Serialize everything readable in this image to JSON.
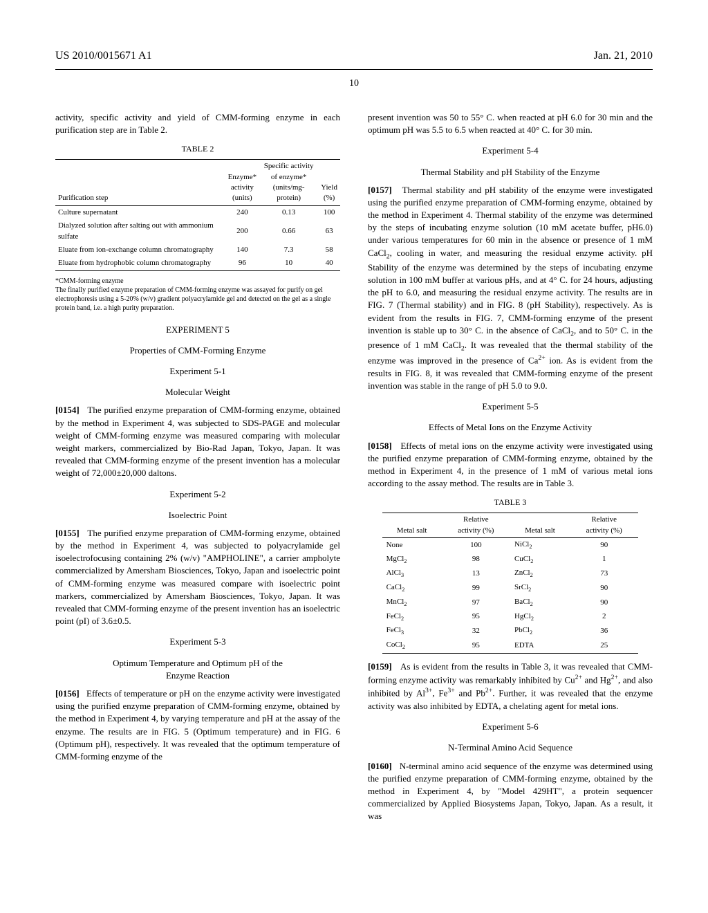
{
  "header": {
    "left": "US 2010/0015671 A1",
    "right": "Jan. 21, 2010"
  },
  "page_number": "10",
  "col_left": {
    "intro": "activity, specific activity and yield of CMM-forming enzyme in each purification step are in Table 2.",
    "table2": {
      "label": "TABLE 2",
      "headers": [
        "Purification step",
        "Enzyme* activity (units)",
        "Specific activity of enzyme* (units/mg-protein)",
        "Yield (%)"
      ],
      "rows": [
        [
          "Culture supernatant",
          "240",
          "0.13",
          "100"
        ],
        [
          "Dialyzed solution after salting out with ammonium sulfate",
          "200",
          "0.66",
          "63"
        ],
        [
          "Eluate from ion-exchange column chromatography",
          "140",
          "7.3",
          "58"
        ],
        [
          "Eluate from hydrophobic column chromatography",
          "96",
          "10",
          "40"
        ]
      ],
      "footnote": "*CMM-forming enzyme\nThe finally purified enzyme preparation of CMM-forming enzyme was assayed for purify on gel electrophoresis using a 5-20% (w/v) gradient polyacrylamide gel and detected on the gel as a single protein band, i.e. a high purity preparation."
    },
    "exp5_title": "EXPERIMENT 5",
    "exp5_sub": "Properties of CMM-Forming Enzyme",
    "exp51_title": "Experiment 5-1",
    "exp51_sub": "Molecular Weight",
    "p0154_num": "[0154]",
    "p0154": "The purified enzyme preparation of CMM-forming enzyme, obtained by the method in Experiment 4, was subjected to SDS-PAGE and molecular weight of CMM-forming enzyme was measured comparing with molecular weight markers, commercialized by Bio-Rad Japan, Tokyo, Japan. It was revealed that CMM-forming enzyme of the present invention has a molecular weight of 72,000±20,000 daltons.",
    "exp52_title": "Experiment 5-2",
    "exp52_sub": "Isoelectric Point",
    "p0155_num": "[0155]",
    "p0155": "The purified enzyme preparation of CMM-forming enzyme, obtained by the method in Experiment 4, was subjected to polyacrylamide gel isoelectrofocusing containing 2% (w/v) \"AMPHOLINE\", a carrier ampholyte commercialized by Amersham Biosciences, Tokyo, Japan and isoelectric point of CMM-forming enzyme was measured compare with isoelectric point markers, commercialized by Amersham Biosciences, Tokyo, Japan. It was revealed that CMM-forming enzyme of the present invention has an isoelectric point (pI) of 3.6±0.5.",
    "exp53_title": "Experiment 5-3",
    "exp53_sub": "Optimum Temperature and Optimum pH of the Enzyme Reaction",
    "p0156_num": "[0156]",
    "p0156": "Effects of temperature or pH on the enzyme activity were investigated using the purified enzyme preparation of CMM-forming enzyme, obtained by the method in Experiment 4, by varying temperature and pH at the assay of the enzyme. The results are in FIG. 5 (Optimum temperature) and in FIG. 6 (Optimum pH), respectively. It was revealed that the optimum temperature of CMM-forming enzyme of the"
  },
  "col_right": {
    "p0156_cont": "present invention was 50 to 55° C. when reacted at pH 6.0 for 30 min and the optimum pH was 5.5 to 6.5 when reacted at 40° C. for 30 min.",
    "exp54_title": "Experiment 5-4",
    "exp54_sub": "Thermal Stability and pH Stability of the Enzyme",
    "p0157_num": "[0157]",
    "p0157_a": "Thermal stability and pH stability of the enzyme were investigated using the purified enzyme preparation of CMM-forming enzyme, obtained by the method in Experiment 4. Thermal stability of the enzyme was determined by the steps of incubating enzyme solution (10 mM acetate buffer, pH6.0) under various temperatures for 60 min in the absence or presence of 1 mM CaCl",
    "p0157_b": ", cooling in water, and measuring the residual enzyme activity. pH Stability of the enzyme was determined by the steps of incubating enzyme solution in 100 mM buffer at various pHs, and at 4° C. for 24 hours, adjusting the pH to 6.0, and measuring the residual enzyme activity. The results are in FIG. 7 (Thermal stability) and in FIG. 8 (pH Stability), respectively. As is evident from the results in FIG. 7, CMM-forming enzyme of the present invention is stable up to 30° C. in the absence of CaCl",
    "p0157_c": ", and to 50° C. in the presence of 1 mM CaCl",
    "p0157_d": ". It was revealed that the thermal stability of the enzyme was improved in the presence of Ca",
    "p0157_e": " ion. As is evident from the results in FIG. 8, it was revealed that CMM-forming enzyme of the present invention was stable in the range of pH 5.0 to 9.0.",
    "exp55_title": "Experiment 5-5",
    "exp55_sub": "Effects of Metal Ions on the Enzyme Activity",
    "p0158_num": "[0158]",
    "p0158": "Effects of metal ions on the enzyme activity were investigated using the purified enzyme preparation of CMM-forming enzyme, obtained by the method in Experiment 4, in the presence of 1 mM of various metal ions according to the assay method. The results are in Table 3.",
    "table3": {
      "label": "TABLE 3",
      "header_salt": "Metal salt",
      "header_act": "Relative activity (%)",
      "rows": [
        [
          "None",
          "100",
          "NiCl₂",
          "90"
        ],
        [
          "MgCl₂",
          "98",
          "CuCl₂",
          "1"
        ],
        [
          "AlCl₃",
          "13",
          "ZnCl₂",
          "73"
        ],
        [
          "CaCl₂",
          "99",
          "SrCl₂",
          "90"
        ],
        [
          "MnCl₂",
          "97",
          "BaCl₂",
          "90"
        ],
        [
          "FeCl₂",
          "95",
          "HgCl₂",
          "2"
        ],
        [
          "FeCl₃",
          "32",
          "PbCl₂",
          "36"
        ],
        [
          "CoCl₂",
          "95",
          "EDTA",
          "25"
        ]
      ]
    },
    "p0159_num": "[0159]",
    "p0159_a": "As is evident from the results in Table 3, it was revealed that CMM-forming enzyme activity was remarkably inhibited by Cu",
    "p0159_b": " and Hg",
    "p0159_c": ", and also inhibited by Al",
    "p0159_d": ", Fe",
    "p0159_e": " and Pb",
    "p0159_f": ". Further, it was revealed that the enzyme activity was also inhibited by EDTA, a chelating agent for metal ions.",
    "exp56_title": "Experiment 5-6",
    "exp56_sub": "N-Terminal Amino Acid Sequence",
    "p0160_num": "[0160]",
    "p0160": "N-terminal amino acid sequence of the enzyme was determined using the purified enzyme preparation of CMM-forming enzyme, obtained by the method in Experiment 4, by \"Model 429HT\", a protein sequencer commercialized by Applied Biosystems Japan, Tokyo, Japan. As a result, it was"
  }
}
